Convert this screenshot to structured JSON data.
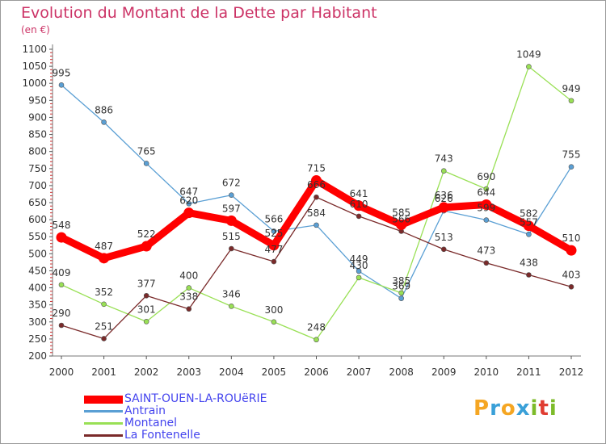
{
  "title": "Evolution du Montant de la Dette par Habitant",
  "subtitle": "(en €)",
  "brand": {
    "text": "Proxiti",
    "colors": [
      "#f5a623",
      "#3aa0d8",
      "#f5a623",
      "#3aa0d8",
      "#7dbb2a",
      "#e03c31",
      "#7dbb2a"
    ]
  },
  "chart_data": {
    "type": "line",
    "title": "Evolution du Montant de la Dette par Habitant",
    "subtitle": "(en €)",
    "xlabel": "",
    "ylabel": "",
    "x": [
      "2000",
      "2001",
      "2002",
      "2003",
      "2004",
      "2005",
      "2006",
      "2007",
      "2008",
      "2009",
      "2010",
      "2011",
      "2012"
    ],
    "ylim": [
      200,
      1100
    ],
    "yticks": [
      200,
      250,
      300,
      350,
      400,
      450,
      500,
      550,
      600,
      650,
      700,
      750,
      800,
      850,
      900,
      950,
      1000,
      1050,
      1100
    ],
    "grid": false,
    "legend_position": "bottom-left",
    "series": [
      {
        "name": "SAINT-OUEN-LA-ROUëRIE",
        "color": "#ff0000",
        "emphasis": true,
        "values": [
          548,
          487,
          522,
          620,
          597,
          525,
          715,
          641,
          585,
          636,
          644,
          582,
          510
        ]
      },
      {
        "name": "Antrain",
        "color": "#5a9fd4",
        "emphasis": false,
        "values": [
          995,
          886,
          765,
          647,
          672,
          566,
          584,
          449,
          369,
          626,
          599,
          557,
          755
        ]
      },
      {
        "name": "Montanel",
        "color": "#99e055",
        "emphasis": false,
        "values": [
          409,
          352,
          301,
          400,
          346,
          300,
          248,
          430,
          385,
          743,
          690,
          1049,
          949
        ]
      },
      {
        "name": "La Fontenelle",
        "color": "#7a2a2a",
        "emphasis": false,
        "values": [
          290,
          251,
          377,
          338,
          515,
          477,
          666,
          610,
          566,
          513,
          473,
          438,
          403
        ]
      }
    ]
  }
}
